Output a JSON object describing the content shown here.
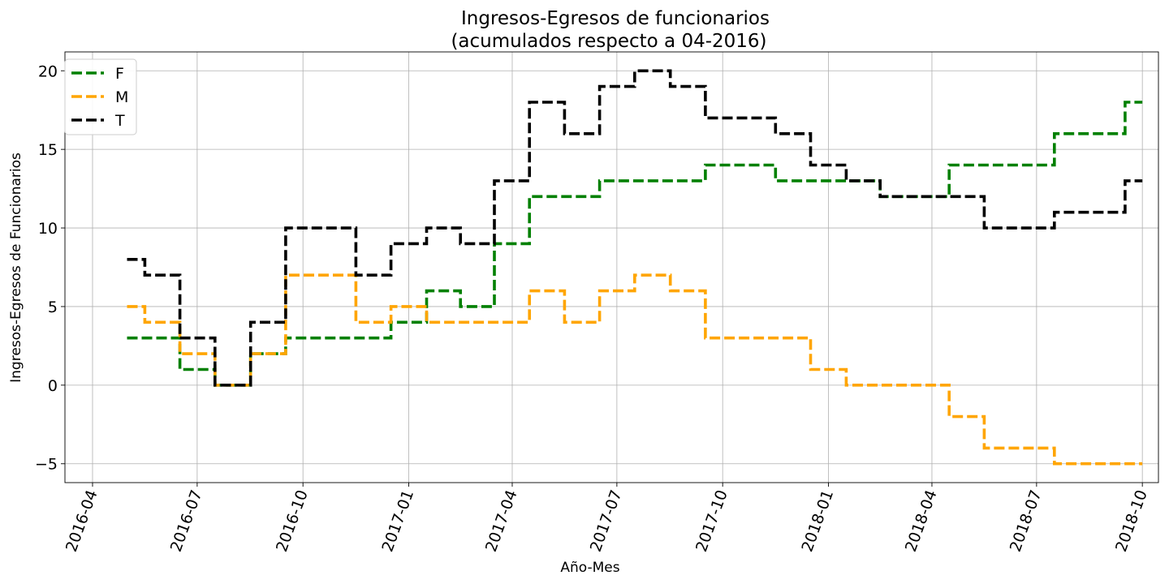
{
  "chart_data": {
    "type": "line",
    "title": "Ingresos-Egresos de funcionarios",
    "subtitle": "(acumulados respecto a 04-2016)",
    "xlabel": "Año-Mes",
    "ylabel": "Ingresos-Egresos de Funcionarios",
    "x_ticks": [
      "2016-04",
      "2016-07",
      "2016-10",
      "2017-01",
      "2017-04",
      "2017-07",
      "2017-10",
      "2018-01",
      "2018-04",
      "2018-07",
      "2018-10"
    ],
    "y_ticks": [
      "−5",
      "0",
      "5",
      "10",
      "15",
      "20"
    ],
    "xlim": [
      "2016-03-08",
      "2018-10-15"
    ],
    "ylim": [
      -6.2,
      21.2
    ],
    "grid": true,
    "legend_position": "top-left",
    "step": "mid",
    "x": [
      "2016-05-01",
      "2016-06-01",
      "2016-07-01",
      "2016-08-01",
      "2016-09-01",
      "2016-10-01",
      "2016-11-01",
      "2016-12-01",
      "2017-01-01",
      "2017-02-01",
      "2017-03-01",
      "2017-04-01",
      "2017-05-01",
      "2017-06-01",
      "2017-07-01",
      "2017-08-01",
      "2017-09-01",
      "2017-10-01",
      "2017-11-01",
      "2017-12-01",
      "2018-01-01",
      "2018-02-01",
      "2018-03-01",
      "2018-04-01",
      "2018-05-01",
      "2018-06-01",
      "2018-07-01",
      "2018-08-01",
      "2018-09-01",
      "2018-10-01"
    ],
    "series": [
      {
        "name": "F",
        "color": "#008000",
        "values": [
          3,
          3,
          1,
          0,
          2,
          3,
          3,
          3,
          4,
          6,
          5,
          9,
          12,
          12,
          13,
          13,
          13,
          14,
          14,
          13,
          13,
          13,
          12,
          12,
          14,
          14,
          14,
          16,
          16,
          18
        ]
      },
      {
        "name": "M",
        "color": "#ffa500",
        "values": [
          5,
          4,
          2,
          0,
          2,
          7,
          7,
          4,
          5,
          4,
          4,
          4,
          6,
          4,
          6,
          7,
          6,
          3,
          3,
          3,
          1,
          0,
          0,
          0,
          -2,
          -4,
          -4,
          -5,
          -5,
          -5
        ]
      },
      {
        "name": "T",
        "color": "#000000",
        "values": [
          8,
          7,
          3,
          0,
          4,
          10,
          10,
          7,
          9,
          10,
          9,
          13,
          18,
          16,
          19,
          20,
          19,
          17,
          17,
          16,
          14,
          13,
          12,
          12,
          12,
          10,
          10,
          11,
          11,
          13
        ]
      }
    ]
  }
}
